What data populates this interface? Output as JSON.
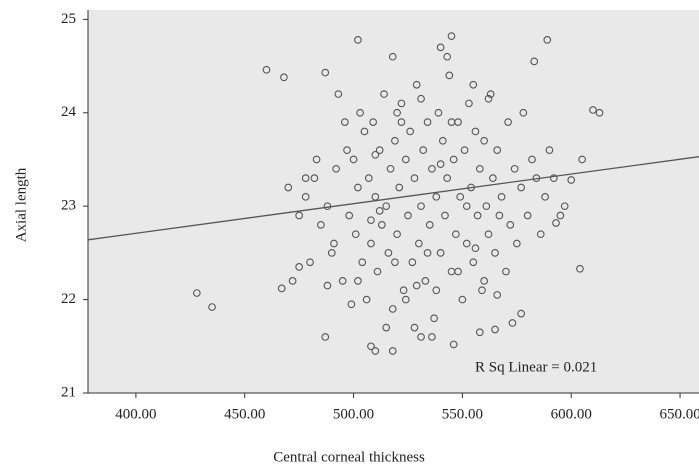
{
  "chart_data": {
    "type": "scatter",
    "xlabel": "Central corneal thickness",
    "ylabel": "Axial length",
    "annotation": "R Sq Linear = 0.021",
    "color": "#555555",
    "xlim": [
      378,
      658.7
    ],
    "ylim": [
      21,
      25.1
    ],
    "xticks": [
      {
        "value": 400,
        "label": "400.00"
      },
      {
        "value": 450,
        "label": "450.00"
      },
      {
        "value": 500,
        "label": "500.00"
      },
      {
        "value": 550,
        "label": "550.00"
      },
      {
        "value": 600,
        "label": "600.00"
      },
      {
        "value": 650,
        "label": "650.00"
      }
    ],
    "yticks": [
      21,
      22,
      23,
      24,
      25
    ],
    "fit_line": {
      "x": [
        378,
        658.7
      ],
      "y": [
        22.64,
        23.53
      ]
    },
    "x": [
      428,
      435,
      460,
      468,
      467,
      502,
      545,
      518,
      540,
      589,
      583,
      610,
      613,
      604,
      605,
      487,
      508,
      510,
      518,
      546,
      531,
      565,
      577,
      558,
      600,
      593,
      475,
      478,
      480,
      482,
      485,
      488,
      490,
      492,
      495,
      497,
      498,
      500,
      501,
      502,
      503,
      504,
      505,
      506,
      507,
      508,
      509,
      510,
      511,
      512,
      513,
      514,
      515,
      516,
      517,
      518,
      519,
      520,
      521,
      522,
      523,
      524,
      525,
      526,
      527,
      528,
      529,
      530,
      531,
      532,
      533,
      534,
      535,
      536,
      537,
      538,
      539,
      540,
      541,
      542,
      543,
      544,
      545,
      546,
      547,
      548,
      549,
      550,
      551,
      552,
      553,
      554,
      555,
      556,
      557,
      558,
      559,
      560,
      561,
      562,
      563,
      564,
      565,
      566,
      567,
      568,
      570,
      571,
      572,
      574,
      575,
      577,
      578,
      580,
      582,
      584,
      586,
      588,
      590,
      592,
      595,
      597,
      496,
      493,
      487,
      499,
      515,
      528,
      536,
      520,
      543,
      555,
      475,
      472,
      470,
      478,
      483,
      488,
      491,
      508,
      512,
      534,
      548,
      560,
      566,
      573,
      524,
      529,
      502,
      519,
      538,
      552,
      545,
      531,
      522,
      510,
      556,
      562,
      540
    ],
    "values": [
      22.07,
      21.92,
      24.46,
      24.38,
      22.12,
      24.78,
      24.82,
      24.6,
      24.7,
      24.78,
      24.55,
      24.03,
      24.0,
      22.33,
      23.5,
      21.6,
      21.5,
      21.45,
      21.45,
      21.52,
      21.6,
      21.68,
      21.85,
      21.65,
      23.28,
      22.82,
      22.9,
      23.1,
      22.4,
      23.3,
      22.8,
      23.0,
      22.5,
      23.4,
      22.2,
      23.6,
      22.9,
      23.5,
      22.7,
      23.2,
      24.0,
      22.4,
      23.8,
      22.0,
      23.3,
      22.6,
      23.9,
      23.1,
      22.3,
      23.6,
      22.8,
      24.2,
      23.0,
      22.5,
      23.4,
      21.9,
      23.7,
      22.7,
      23.2,
      24.1,
      22.1,
      23.5,
      22.9,
      23.8,
      22.4,
      23.3,
      24.3,
      22.6,
      23.0,
      23.6,
      22.2,
      23.9,
      22.8,
      23.4,
      21.8,
      23.1,
      24.0,
      22.5,
      23.7,
      22.9,
      23.3,
      24.4,
      22.3,
      23.5,
      22.7,
      23.9,
      23.1,
      22.0,
      23.6,
      22.6,
      24.1,
      23.2,
      22.4,
      23.8,
      22.9,
      23.4,
      22.1,
      23.7,
      23.0,
      22.7,
      24.2,
      23.3,
      22.5,
      23.6,
      22.9,
      23.1,
      22.3,
      23.9,
      22.8,
      23.4,
      22.6,
      23.2,
      24.0,
      22.9,
      23.5,
      23.3,
      22.7,
      23.1,
      23.6,
      23.3,
      22.9,
      23.0,
      23.9,
      24.2,
      24.43,
      21.95,
      21.7,
      21.7,
      21.6,
      24.0,
      24.6,
      24.3,
      22.35,
      22.2,
      23.2,
      23.3,
      23.5,
      22.15,
      22.6,
      22.85,
      22.95,
      22.5,
      22.3,
      22.2,
      22.05,
      21.75,
      22.0,
      22.15,
      22.2,
      22.4,
      22.1,
      23.0,
      23.9,
      24.15,
      23.9,
      23.55,
      22.55,
      24.15,
      23.45
    ]
  }
}
